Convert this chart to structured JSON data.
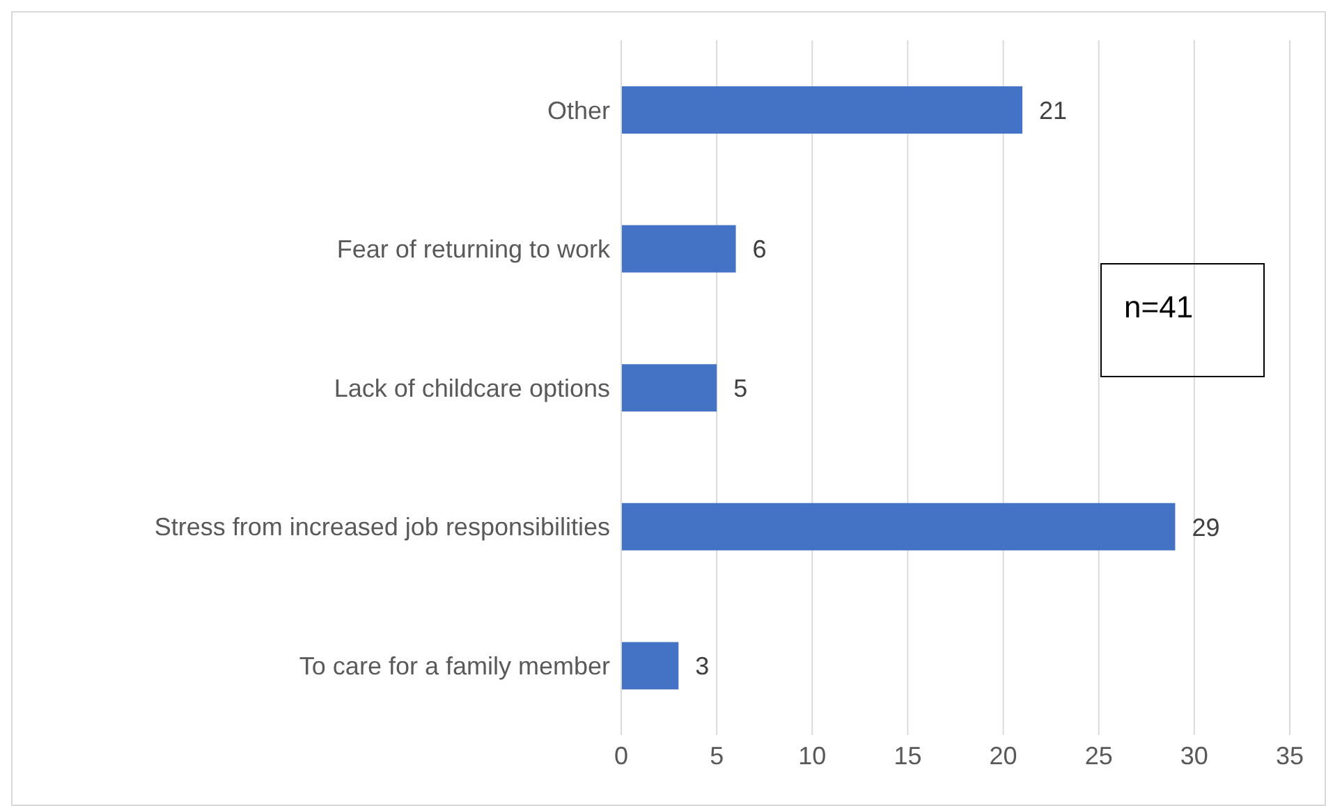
{
  "chart_data": {
    "type": "bar",
    "orientation": "horizontal",
    "categories": [
      "Other",
      "Fear of returning to work",
      "Lack of childcare options",
      "Stress from increased job responsibilities",
      "To care for a family member"
    ],
    "values": [
      21,
      6,
      5,
      29,
      3
    ],
    "color": "#4472c4",
    "xlim": [
      0,
      35
    ],
    "xticks": [
      0,
      5,
      10,
      15,
      20,
      25,
      30,
      35
    ],
    "grid": "x",
    "data_labels": true,
    "annotations": [
      "n=41"
    ]
  }
}
